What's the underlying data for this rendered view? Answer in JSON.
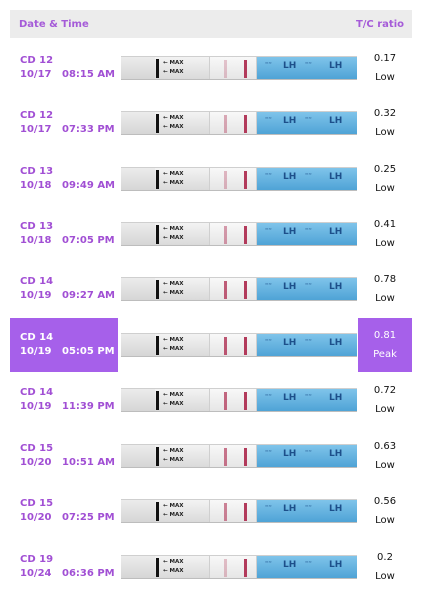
{
  "header": {
    "left_label": "Date & Time",
    "right_label": "T/C ratio"
  },
  "strip_text": {
    "max_label": "← MAX",
    "lh_label": "LH",
    "brand_mark": "≈≈"
  },
  "peak_color": "#a660ea",
  "rows": [
    {
      "cd": "CD 12",
      "date": "10/17",
      "time": "08:15 AM",
      "ratio": "0.17",
      "level": "Low",
      "peak": false,
      "tc": 0.17
    },
    {
      "cd": "CD 12",
      "date": "10/17",
      "time": "07:33 PM",
      "ratio": "0.32",
      "level": "Low",
      "peak": false,
      "tc": 0.32
    },
    {
      "cd": "CD 13",
      "date": "10/18",
      "time": "09:49 AM",
      "ratio": "0.25",
      "level": "Low",
      "peak": false,
      "tc": 0.25
    },
    {
      "cd": "CD 13",
      "date": "10/18",
      "time": "07:05 PM",
      "ratio": "0.41",
      "level": "Low",
      "peak": false,
      "tc": 0.41
    },
    {
      "cd": "CD 14",
      "date": "10/19",
      "time": "09:27 AM",
      "ratio": "0.78",
      "level": "Low",
      "peak": false,
      "tc": 0.78
    },
    {
      "cd": "CD 14",
      "date": "10/19",
      "time": "05:05 PM",
      "ratio": "0.81",
      "level": "Peak",
      "peak": true,
      "tc": 0.81
    },
    {
      "cd": "CD 14",
      "date": "10/19",
      "time": "11:39 PM",
      "ratio": "0.72",
      "level": "Low",
      "peak": false,
      "tc": 0.72
    },
    {
      "cd": "CD 15",
      "date": "10/20",
      "time": "10:51 AM",
      "ratio": "0.63",
      "level": "Low",
      "peak": false,
      "tc": 0.63
    },
    {
      "cd": "CD 15",
      "date": "10/20",
      "time": "07:25 PM",
      "ratio": "0.56",
      "level": "Low",
      "peak": false,
      "tc": 0.56
    },
    {
      "cd": "CD 19",
      "date": "10/24",
      "time": "06:36 PM",
      "ratio": "0.2",
      "level": "Low",
      "peak": false,
      "tc": 0.2
    }
  ]
}
